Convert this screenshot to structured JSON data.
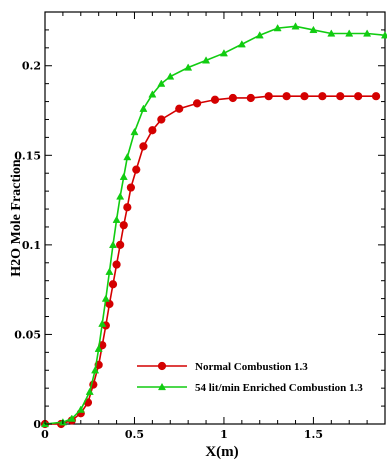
{
  "chart_data": {
    "type": "line",
    "xlabel": "X(m)",
    "ylabel": "H2O Mole Fraction",
    "xlim": [
      0,
      1.9
    ],
    "ylim": [
      0,
      0.23
    ],
    "x_ticks": [
      0,
      0.5,
      1,
      1.5
    ],
    "x_tick_labels": [
      "0",
      "0.5",
      "1",
      "1.5"
    ],
    "y_ticks": [
      0,
      0.05,
      0.1,
      0.15,
      0.2
    ],
    "y_tick_labels": [
      "0",
      "0.05",
      "0.1",
      "0.15",
      "0.2"
    ],
    "grid": false,
    "legend_position": "bottom-right",
    "series": [
      {
        "name": "Normal Combustion 1.3",
        "color": "#d40000",
        "marker": "circle",
        "points": [
          [
            0.0,
            0.0
          ],
          [
            0.09,
            0.0
          ],
          [
            0.15,
            0.002
          ],
          [
            0.2,
            0.006
          ],
          [
            0.24,
            0.012
          ],
          [
            0.27,
            0.022
          ],
          [
            0.3,
            0.033
          ],
          [
            0.32,
            0.044
          ],
          [
            0.34,
            0.055
          ],
          [
            0.36,
            0.067
          ],
          [
            0.38,
            0.078
          ],
          [
            0.4,
            0.089
          ],
          [
            0.42,
            0.1
          ],
          [
            0.44,
            0.111
          ],
          [
            0.46,
            0.121
          ],
          [
            0.48,
            0.132
          ],
          [
            0.51,
            0.142
          ],
          [
            0.55,
            0.155
          ],
          [
            0.6,
            0.164
          ],
          [
            0.65,
            0.17
          ],
          [
            0.75,
            0.176
          ],
          [
            0.85,
            0.179
          ],
          [
            0.95,
            0.181
          ],
          [
            1.05,
            0.182
          ],
          [
            1.15,
            0.182
          ],
          [
            1.25,
            0.183
          ],
          [
            1.35,
            0.183
          ],
          [
            1.45,
            0.183
          ],
          [
            1.55,
            0.183
          ],
          [
            1.65,
            0.183
          ],
          [
            1.75,
            0.183
          ],
          [
            1.85,
            0.183
          ]
        ]
      },
      {
        "name": "54 lit/min Enriched Combustion  1.3",
        "color": "#11cc11",
        "marker": "triangle",
        "points": [
          [
            0.0,
            0.0
          ],
          [
            0.1,
            0.001
          ],
          [
            0.15,
            0.003
          ],
          [
            0.2,
            0.008
          ],
          [
            0.25,
            0.018
          ],
          [
            0.28,
            0.03
          ],
          [
            0.3,
            0.042
          ],
          [
            0.32,
            0.056
          ],
          [
            0.34,
            0.07
          ],
          [
            0.36,
            0.085
          ],
          [
            0.38,
            0.1
          ],
          [
            0.4,
            0.114
          ],
          [
            0.42,
            0.127
          ],
          [
            0.44,
            0.138
          ],
          [
            0.46,
            0.149
          ],
          [
            0.5,
            0.163
          ],
          [
            0.55,
            0.176
          ],
          [
            0.6,
            0.184
          ],
          [
            0.65,
            0.19
          ],
          [
            0.7,
            0.194
          ],
          [
            0.8,
            0.199
          ],
          [
            0.9,
            0.203
          ],
          [
            1.0,
            0.207
          ],
          [
            1.1,
            0.212
          ],
          [
            1.2,
            0.217
          ],
          [
            1.3,
            0.221
          ],
          [
            1.4,
            0.222
          ],
          [
            1.5,
            0.22
          ],
          [
            1.6,
            0.218
          ],
          [
            1.7,
            0.218
          ],
          [
            1.8,
            0.218
          ],
          [
            1.9,
            0.217
          ]
        ]
      }
    ]
  }
}
